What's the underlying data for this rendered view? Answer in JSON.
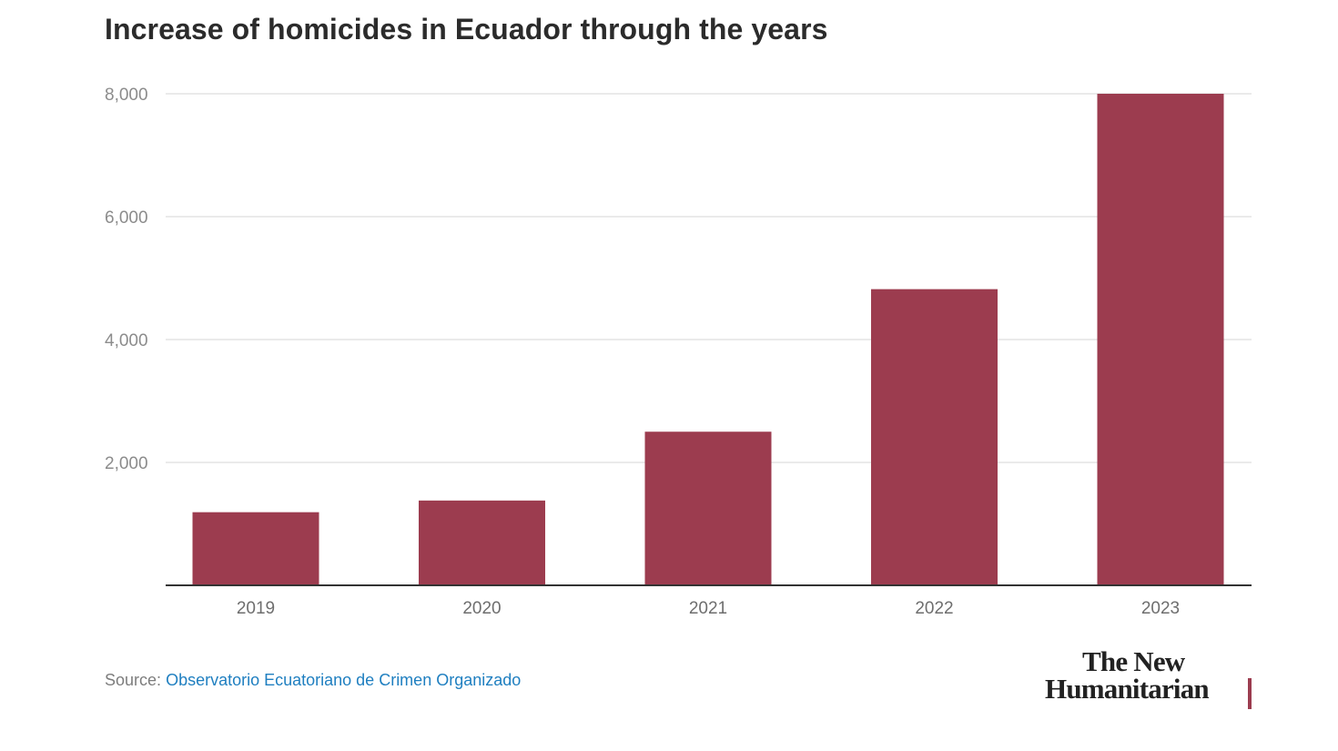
{
  "chart_data": {
    "type": "bar",
    "title": "Increase of homicides in Ecuador through the years",
    "categories": [
      "2019",
      "2020",
      "2021",
      "2022",
      "2023"
    ],
    "values": [
      1190,
      1380,
      2500,
      4820,
      8000
    ],
    "ylim": [
      0,
      8000
    ],
    "yticks": [
      2000,
      4000,
      6000,
      8000
    ],
    "ytick_labels": [
      "2,000",
      "4,000",
      "6,000",
      "8,000"
    ],
    "xlabel": "",
    "ylabel": "",
    "grid": true,
    "bar_color": "#9c3c4f"
  },
  "source": {
    "label": "Source:",
    "link_text": "Observatorio Ecuatoriano de Crimen Organizado"
  },
  "brand": {
    "line1": "The New",
    "line2": "Humanitarian",
    "accent_color": "#9c3c4f"
  }
}
